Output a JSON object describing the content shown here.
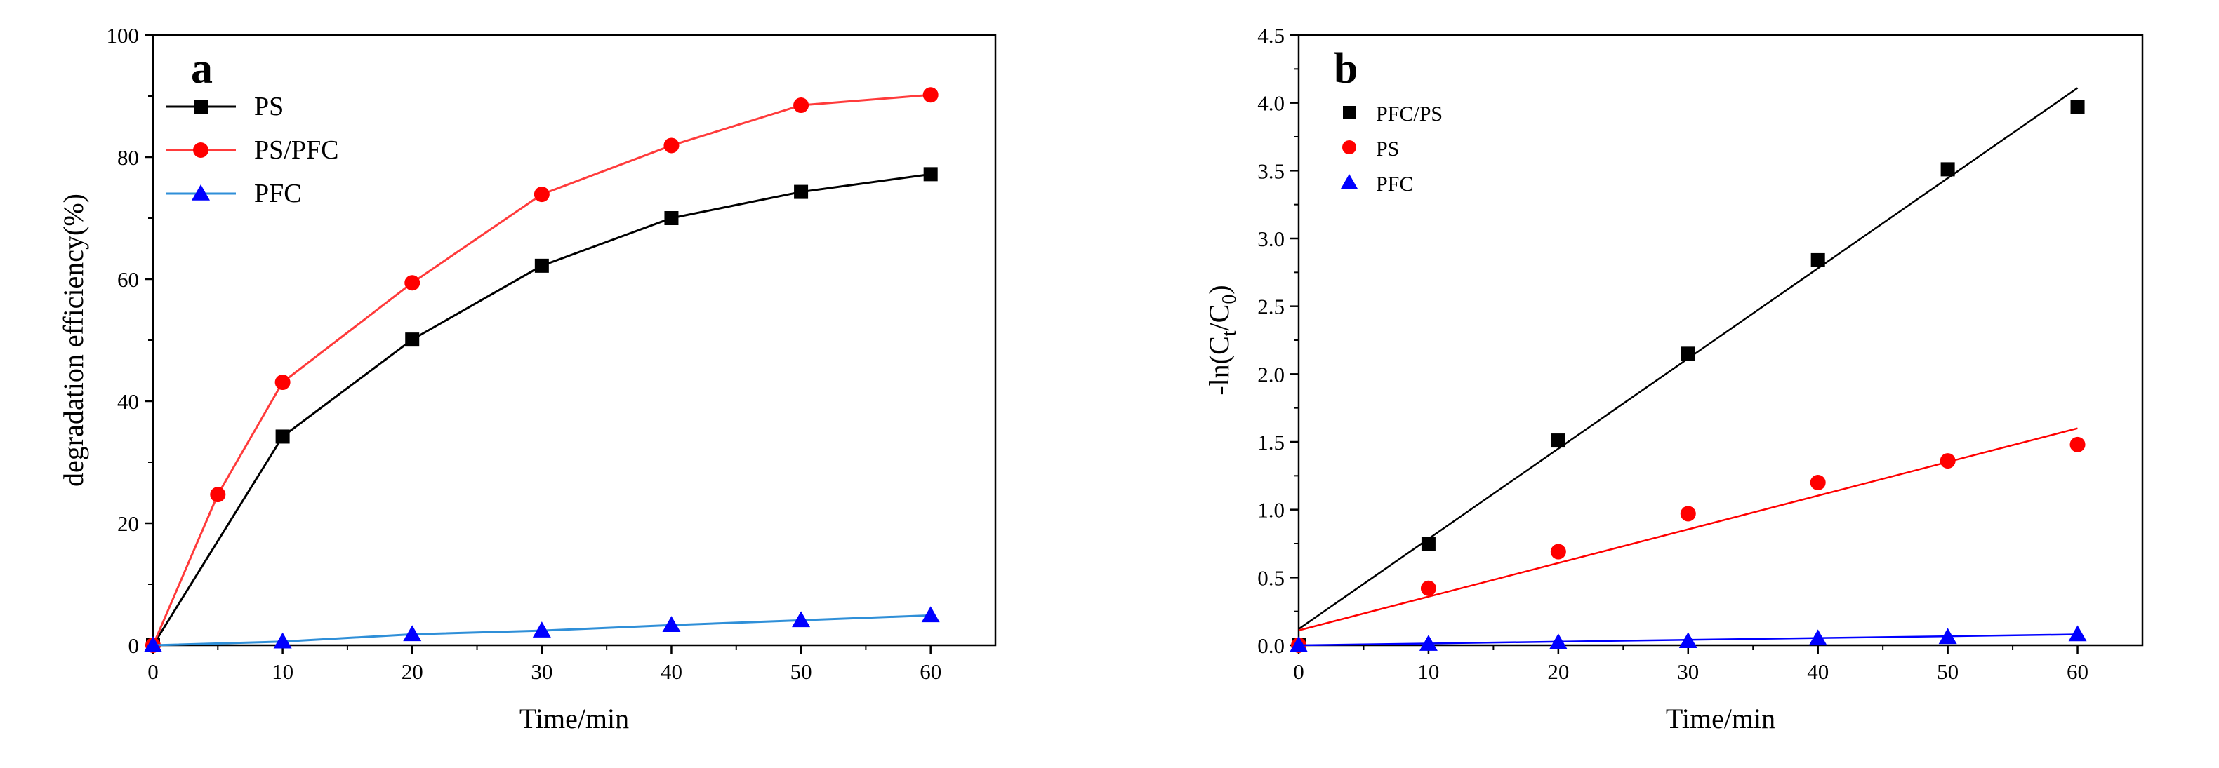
{
  "chart_data": [
    {
      "panel": "a",
      "type": "line",
      "xlabel": "Time/min",
      "ylabel": "degradation efficiency(%)",
      "xlim": [
        0,
        65
      ],
      "ylim": [
        0,
        100
      ],
      "xticks": [
        0,
        10,
        20,
        30,
        40,
        50,
        60
      ],
      "yticks": [
        0,
        20,
        40,
        60,
        80,
        100
      ],
      "legend_position": "top-left",
      "series": [
        {
          "name": "PS",
          "color": "#000000",
          "marker": "square",
          "x": [
            0,
            10,
            20,
            30,
            40,
            50,
            60
          ],
          "y": [
            0,
            34.2,
            50.1,
            62.2,
            70,
            74.3,
            77.2
          ]
        },
        {
          "name": "PS/PFC",
          "color": "#ff0000",
          "marker": "circle",
          "line_color": "#ff3b3b",
          "x": [
            0,
            5,
            10,
            20,
            30,
            40,
            50,
            60
          ],
          "y": [
            0,
            24.7,
            43.1,
            59.4,
            73.9,
            81.9,
            88.5,
            90.2
          ]
        },
        {
          "name": "PFC",
          "color": "#0000ff",
          "marker": "triangle",
          "line_color": "#2f8fd8",
          "x": [
            0,
            10,
            20,
            30,
            40,
            50,
            60
          ],
          "y": [
            0,
            0.6,
            1.8,
            2.4,
            3.3,
            4.1,
            4.9
          ]
        }
      ]
    },
    {
      "panel": "b",
      "type": "scatter",
      "xlabel": "Time/min",
      "ylabel": "-ln(Ct/C0)",
      "ylabel_parts": {
        "prefix": "-ln(C",
        "sub1": "t",
        "mid": "/C",
        "sub2": "0",
        "suffix": ")"
      },
      "xlim": [
        0,
        65
      ],
      "ylim": [
        0,
        4.5
      ],
      "xticks": [
        0,
        10,
        20,
        30,
        40,
        50,
        60
      ],
      "yticks": [
        0.0,
        0.5,
        1.0,
        1.5,
        2.0,
        2.5,
        3.0,
        3.5,
        4.0,
        4.5
      ],
      "legend_position": "top-left",
      "series": [
        {
          "name": "PFC/PS",
          "color": "#000000",
          "marker": "square",
          "x": [
            0,
            10,
            20,
            30,
            40,
            50,
            60
          ],
          "y": [
            0,
            0.75,
            1.51,
            2.15,
            2.84,
            3.51,
            3.97
          ],
          "fit": {
            "x0": 0,
            "y0": 0.12,
            "x1": 60,
            "y1": 4.11
          }
        },
        {
          "name": "PS",
          "color": "#ff0000",
          "marker": "circle",
          "x": [
            0,
            10,
            20,
            30,
            40,
            50,
            60
          ],
          "y": [
            0,
            0.42,
            0.69,
            0.97,
            1.2,
            1.36,
            1.48
          ],
          "fit": {
            "x0": 0,
            "y0": 0.11,
            "x1": 60,
            "y1": 1.6
          }
        },
        {
          "name": "PFC",
          "color": "#0000ff",
          "marker": "triangle",
          "x": [
            0,
            10,
            20,
            30,
            40,
            50,
            60
          ],
          "y": [
            0,
            0.01,
            0.02,
            0.03,
            0.05,
            0.06,
            0.08
          ],
          "fit": {
            "x0": 0,
            "y0": 0.0,
            "x1": 60,
            "y1": 0.08
          }
        }
      ]
    }
  ]
}
